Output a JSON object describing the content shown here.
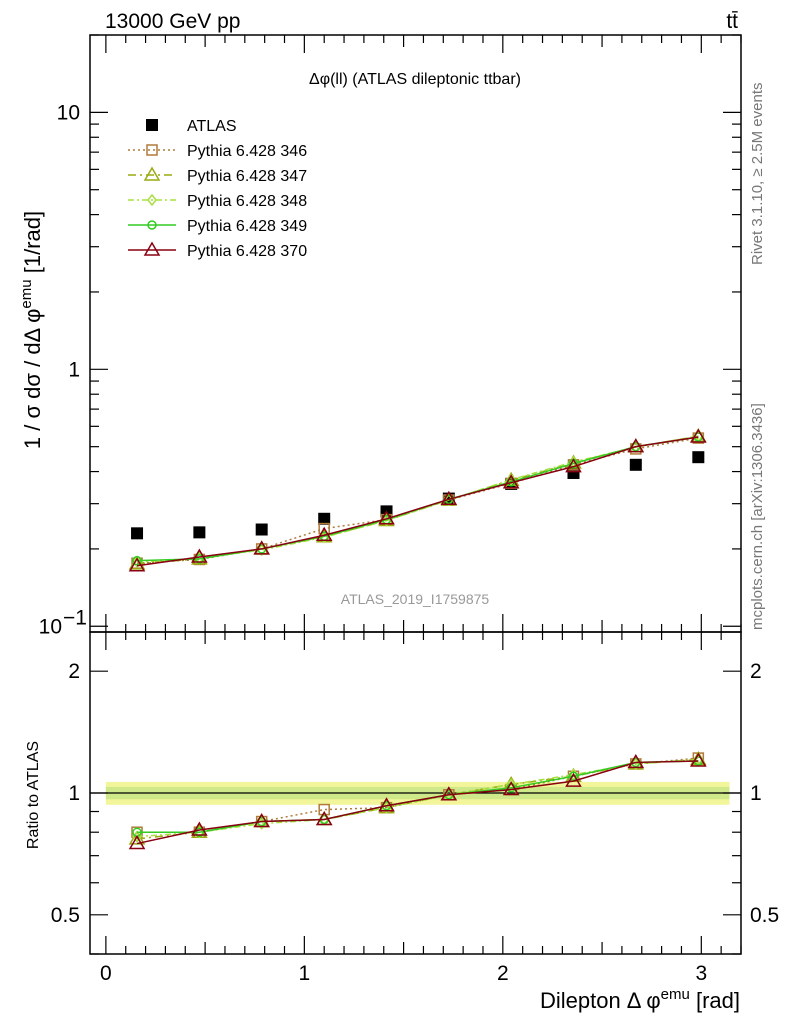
{
  "header": {
    "left": "13000 GeV pp",
    "right": "tt̄"
  },
  "side_labels": {
    "rivet": "Rivet 3.1.10, ≥ 2.5M events",
    "mcplots": "mcplots.cern.ch [arXiv:1306.3436]"
  },
  "colors": {
    "data": "#000000",
    "346": "#b07a3a",
    "347": "#9aaa10",
    "348": "#a8e040",
    "349": "#33cc22",
    "370": "#880011",
    "band_outer": "#f2f59a",
    "band_inner": "#cfe88a"
  },
  "chart_data": [
    {
      "type": "line",
      "panel": "main",
      "title": "Δφ(ll) (ATLAS dileptonic ttbar)",
      "ylabel": "1 / σ  dσ / dΔ φemu [1/rad]",
      "ylabel_parts": {
        "main": "1 / σ  dσ / dΔ φ",
        "sup": "emu",
        "unit": " [1/rad]"
      },
      "yscale": "log",
      "ylim": [
        0.095,
        20
      ],
      "xlim": [
        -0.08,
        3.2
      ],
      "yticks": [
        {
          "value": 0.1,
          "label": "10",
          "sup": "−1"
        },
        {
          "value": 1,
          "label": "1"
        },
        {
          "value": 10,
          "label": "10"
        }
      ],
      "watermark": "ATLAS_2019_I1759875",
      "x": [
        0.157,
        0.471,
        0.785,
        1.1,
        1.414,
        1.728,
        2.042,
        2.356,
        2.67,
        2.985
      ],
      "series": [
        {
          "name": "ATLAS",
          "key": "data",
          "marker": "square",
          "values": [
            0.23,
            0.232,
            0.238,
            0.262,
            0.28,
            0.314,
            0.358,
            0.395,
            0.425,
            0.455
          ]
        },
        {
          "name": "Pythia 6.428 346",
          "key": "346",
          "marker": "open-square",
          "dash": "2,3",
          "values": [
            0.176,
            0.182,
            0.2,
            0.24,
            0.26,
            0.31,
            0.36,
            0.425,
            0.49,
            0.54
          ]
        },
        {
          "name": "Pythia 6.428 347",
          "key": "347",
          "marker": "open-triangle",
          "dash": "8,4,2,4",
          "values": [
            0.175,
            0.183,
            0.2,
            0.223,
            0.258,
            0.31,
            0.37,
            0.432,
            0.5,
            0.548
          ]
        },
        {
          "name": "Pythia 6.428 348",
          "key": "348",
          "marker": "open-diamond",
          "dash": "6,3,2,3",
          "values": [
            0.178,
            0.184,
            0.198,
            0.222,
            0.258,
            0.31,
            0.372,
            0.436,
            0.498,
            0.55
          ]
        },
        {
          "name": "Pythia 6.428 349",
          "key": "349",
          "marker": "open-circle",
          "dash": "",
          "values": [
            0.18,
            0.183,
            0.2,
            0.224,
            0.26,
            0.312,
            0.365,
            0.43,
            0.5,
            0.545
          ]
        },
        {
          "name": "Pythia 6.428 370",
          "key": "370",
          "marker": "open-triangle",
          "dash": "",
          "values": [
            0.172,
            0.186,
            0.2,
            0.226,
            0.262,
            0.312,
            0.362,
            0.418,
            0.5,
            0.545
          ]
        }
      ]
    },
    {
      "type": "line",
      "panel": "ratio",
      "ylabel": "Ratio to ATLAS",
      "xlabel": "Dilepton Δ φemu [rad]",
      "xlabel_parts": {
        "main": "Dilepton Δ φ",
        "sup": "emu",
        "unit": " [rad]"
      },
      "yscale": "log",
      "ylim": [
        0.4,
        2.5
      ],
      "xlim": [
        -0.08,
        3.2
      ],
      "yticks": [
        {
          "value": 0.5,
          "label": "0.5"
        },
        {
          "value": 1,
          "label": "1"
        },
        {
          "value": 2,
          "label": "2"
        }
      ],
      "xticks": [
        0,
        1,
        2,
        3
      ],
      "band": {
        "outer": 0.065,
        "inner": 0.035
      },
      "x": [
        0.157,
        0.471,
        0.785,
        1.1,
        1.414,
        1.728,
        2.042,
        2.356,
        2.67,
        2.985
      ],
      "series": [
        {
          "name": "Pythia 6.428 346",
          "key": "346",
          "marker": "open-square",
          "dash": "2,3",
          "values": [
            0.8,
            0.8,
            0.85,
            0.91,
            0.92,
            0.99,
            1.02,
            1.1,
            1.18,
            1.22
          ]
        },
        {
          "name": "Pythia 6.428 347",
          "key": "347",
          "marker": "open-triangle",
          "dash": "8,4,2,4",
          "values": [
            0.77,
            0.8,
            0.85,
            0.86,
            0.92,
            0.99,
            1.05,
            1.1,
            1.18,
            1.21
          ]
        },
        {
          "name": "Pythia 6.428 348",
          "key": "348",
          "marker": "open-diamond",
          "dash": "6,3,2,3",
          "values": [
            0.78,
            0.8,
            0.84,
            0.86,
            0.92,
            0.99,
            1.05,
            1.11,
            1.18,
            1.21
          ]
        },
        {
          "name": "Pythia 6.428 349",
          "key": "349",
          "marker": "open-circle",
          "dash": "",
          "values": [
            0.8,
            0.8,
            0.85,
            0.86,
            0.93,
            0.99,
            1.03,
            1.1,
            1.19,
            1.2
          ]
        },
        {
          "name": "Pythia 6.428 370",
          "key": "370",
          "marker": "open-triangle",
          "dash": "",
          "values": [
            0.75,
            0.81,
            0.85,
            0.86,
            0.93,
            0.99,
            1.02,
            1.07,
            1.19,
            1.2
          ]
        }
      ]
    }
  ]
}
